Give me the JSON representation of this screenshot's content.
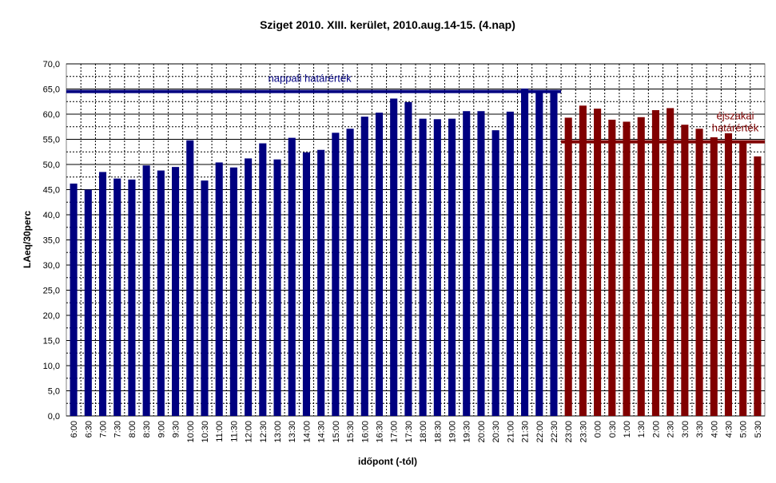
{
  "chart_data": {
    "type": "bar",
    "title": "Sziget 2010.  XIII. kerület, 2010.aug.14-15. (4.nap)",
    "xlabel": "időpont (-tól)",
    "ylabel": "LAeq/30perc",
    "ylim": [
      0,
      70
    ],
    "yticks": [
      "0,0",
      "5,0",
      "10,0",
      "15,0",
      "20,0",
      "25,0",
      "30,0",
      "35,0",
      "40,0",
      "45,0",
      "50,0",
      "55,0",
      "60,0",
      "65,0",
      "70,0"
    ],
    "grid": true,
    "categories": [
      "6:00",
      "6:30",
      "7:00",
      "7:30",
      "8:00",
      "8:30",
      "9:00",
      "9:30",
      "10:00",
      "10:30",
      "11:00",
      "11:30",
      "12:00",
      "12:30",
      "13:00",
      "13:30",
      "14:00",
      "14:30",
      "15:00",
      "15:30",
      "16:00",
      "16:30",
      "17:00",
      "17:30",
      "18:00",
      "18:30",
      "19:00",
      "19:30",
      "20:00",
      "20:30",
      "21:00",
      "21:30",
      "22:00",
      "22:30",
      "23:00",
      "23:30",
      "0:00",
      "0:30",
      "1:00",
      "1:30",
      "2:00",
      "2:30",
      "3:00",
      "3:30",
      "4:00",
      "4:30",
      "5:00",
      "5:30"
    ],
    "values": [
      46.2,
      45.0,
      48.5,
      47.2,
      47.0,
      49.8,
      48.8,
      49.5,
      54.8,
      46.8,
      50.4,
      49.4,
      51.2,
      54.2,
      51.0,
      55.3,
      52.4,
      52.9,
      56.3,
      57.1,
      59.5,
      60.3,
      63.1,
      62.4,
      59.1,
      59.0,
      59.1,
      60.6,
      60.6,
      56.8,
      60.5,
      65.1,
      64.5,
      64.8,
      59.3,
      61.7,
      61.1,
      58.9,
      58.5,
      59.4,
      60.8,
      61.2,
      57.9,
      57.1,
      55.4,
      56.2,
      54.4,
      51.6
    ],
    "day_count": 34,
    "colors": {
      "day": "#000080",
      "night": "#800000",
      "plot_bg": "#ffffff",
      "grid": "#000000"
    },
    "reference_lines": [
      {
        "label": "nappali  határérték",
        "value": 64.5,
        "color": "#000080",
        "span": "day"
      },
      {
        "label_lines": [
          "éjszakai",
          "határérték"
        ],
        "value": 54.5,
        "color": "#800000",
        "span": "night"
      }
    ]
  }
}
